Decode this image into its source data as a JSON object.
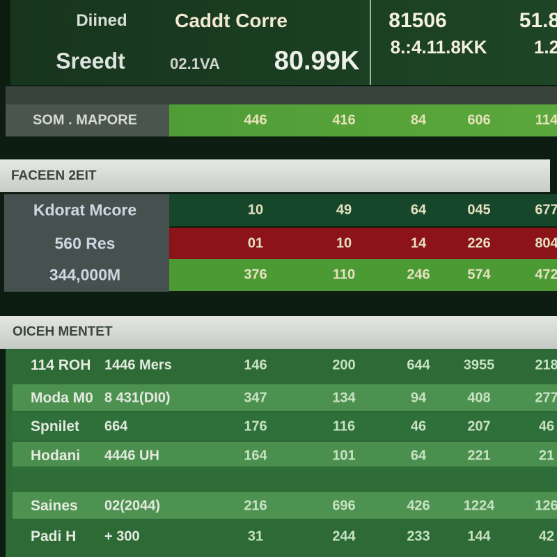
{
  "header": {
    "title_1": "Diined",
    "title_2": "Caddt Corre",
    "label": "Sreedt",
    "code": "02.1VA",
    "total": "80.99K",
    "right_top": "81506",
    "right_top_2": "51.8",
    "right_bottom": "8.:4.11.8KK",
    "right_bottom_2": "1.2"
  },
  "summary": {
    "label": "SOM . MAPORE",
    "values": [
      "446",
      "416",
      "84",
      "606",
      "114"
    ]
  },
  "section_1": {
    "title": "FACEEN 2EIT",
    "rows": [
      {
        "label": "Kdorat Mcore",
        "values": [
          "10",
          "49",
          "64",
          "045",
          "677"
        ]
      },
      {
        "label": "560 Res",
        "values": [
          "01",
          "10",
          "14",
          "226",
          "804"
        ]
      },
      {
        "label": "344,000M",
        "values": [
          "376",
          "110",
          "246",
          "574",
          "472"
        ]
      }
    ]
  },
  "section_2": {
    "title": "OICEH MENTET",
    "rows": [
      {
        "name": "114 ROH",
        "detail": "1446 Mers",
        "values": [
          "146",
          "200",
          "644",
          "3955",
          "218"
        ]
      },
      {
        "name": "Moda M0",
        "detail": "8 431(DI0)",
        "values": [
          "347",
          "134",
          "94",
          "408",
          "277"
        ]
      },
      {
        "name": "Spnilet",
        "detail": "664",
        "values": [
          "176",
          "116",
          "46",
          "207",
          "46"
        ]
      },
      {
        "name": "Hodani",
        "detail": "4446 UH",
        "values": [
          "164",
          "101",
          "64",
          "221",
          "21"
        ]
      },
      {
        "name": "Saines",
        "detail": "02(2044)",
        "values": [
          "216",
          "696",
          "426",
          "1224",
          "126"
        ]
      },
      {
        "name": "Padi H",
        "detail": "+ 300",
        "values": [
          "31",
          "244",
          "233",
          "144",
          "42"
        ]
      }
    ]
  }
}
